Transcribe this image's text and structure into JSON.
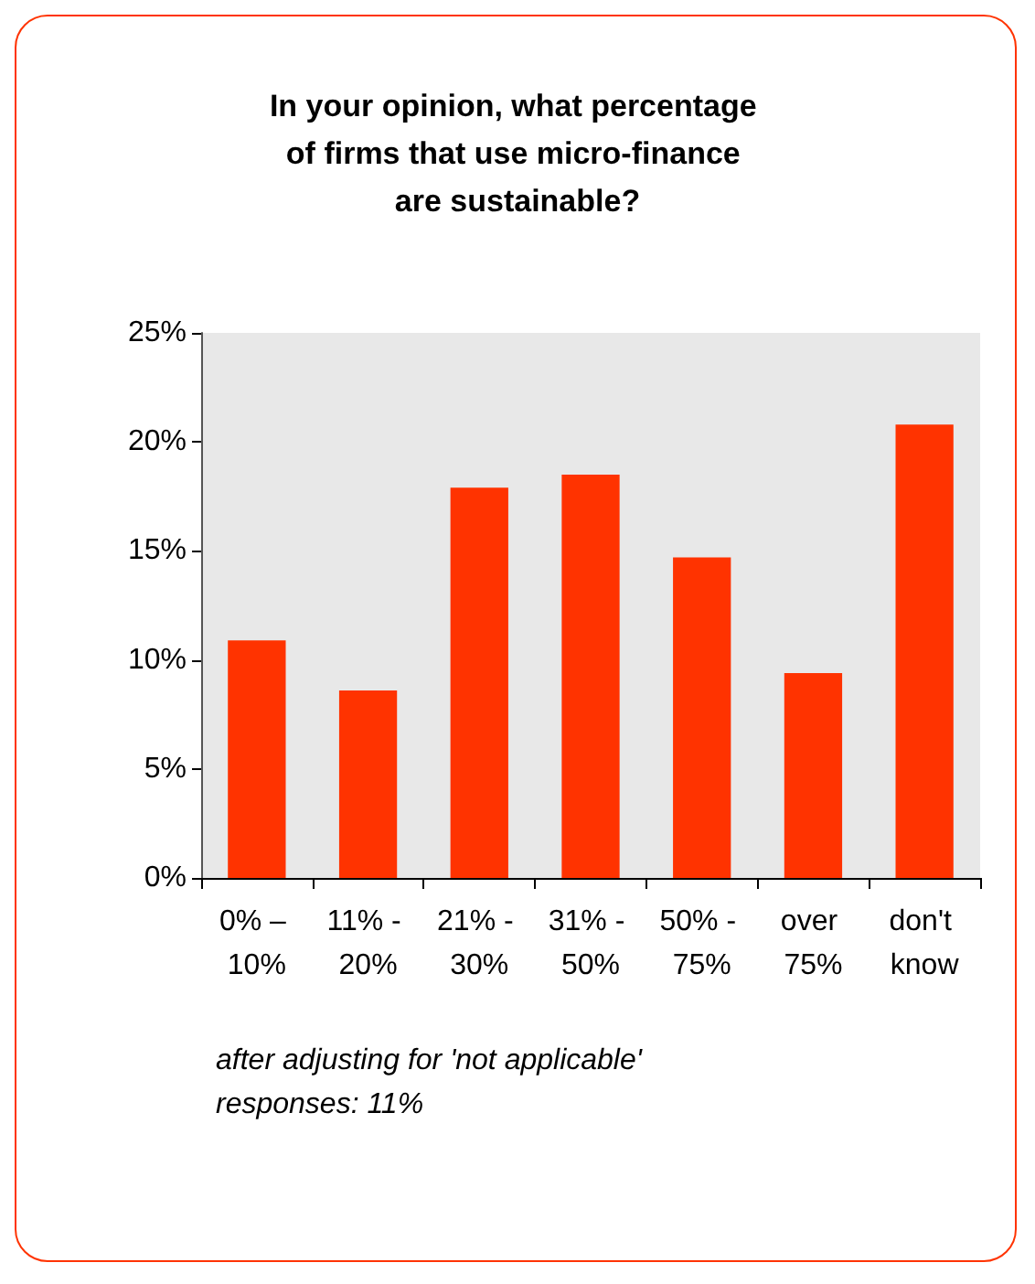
{
  "chart_data": {
    "type": "bar",
    "title": "In your opinion, what percentage of firms that use micro-finance are sustainable?",
    "categories": [
      "0% – 10%",
      "11% - 20%",
      "21% - 30%",
      "31% - 50%",
      "50% - 75%",
      "over 75%",
      "don't know"
    ],
    "values": [
      10.9,
      8.6,
      17.9,
      18.5,
      14.7,
      9.4,
      20.8
    ],
    "color": "#ff3300",
    "ylim": [
      0,
      25
    ],
    "yticks": [
      {
        "value": 0,
        "label": "0%"
      },
      {
        "value": 5,
        "label": "5%"
      },
      {
        "value": 10,
        "label": "10%"
      },
      {
        "value": 15,
        "label": "15%"
      },
      {
        "value": 20,
        "label": "20%"
      },
      {
        "value": 25,
        "label": "25%"
      }
    ],
    "grid": false,
    "annotations": [
      "after adjusting for 'not applicable' responses: 11%"
    ]
  }
}
